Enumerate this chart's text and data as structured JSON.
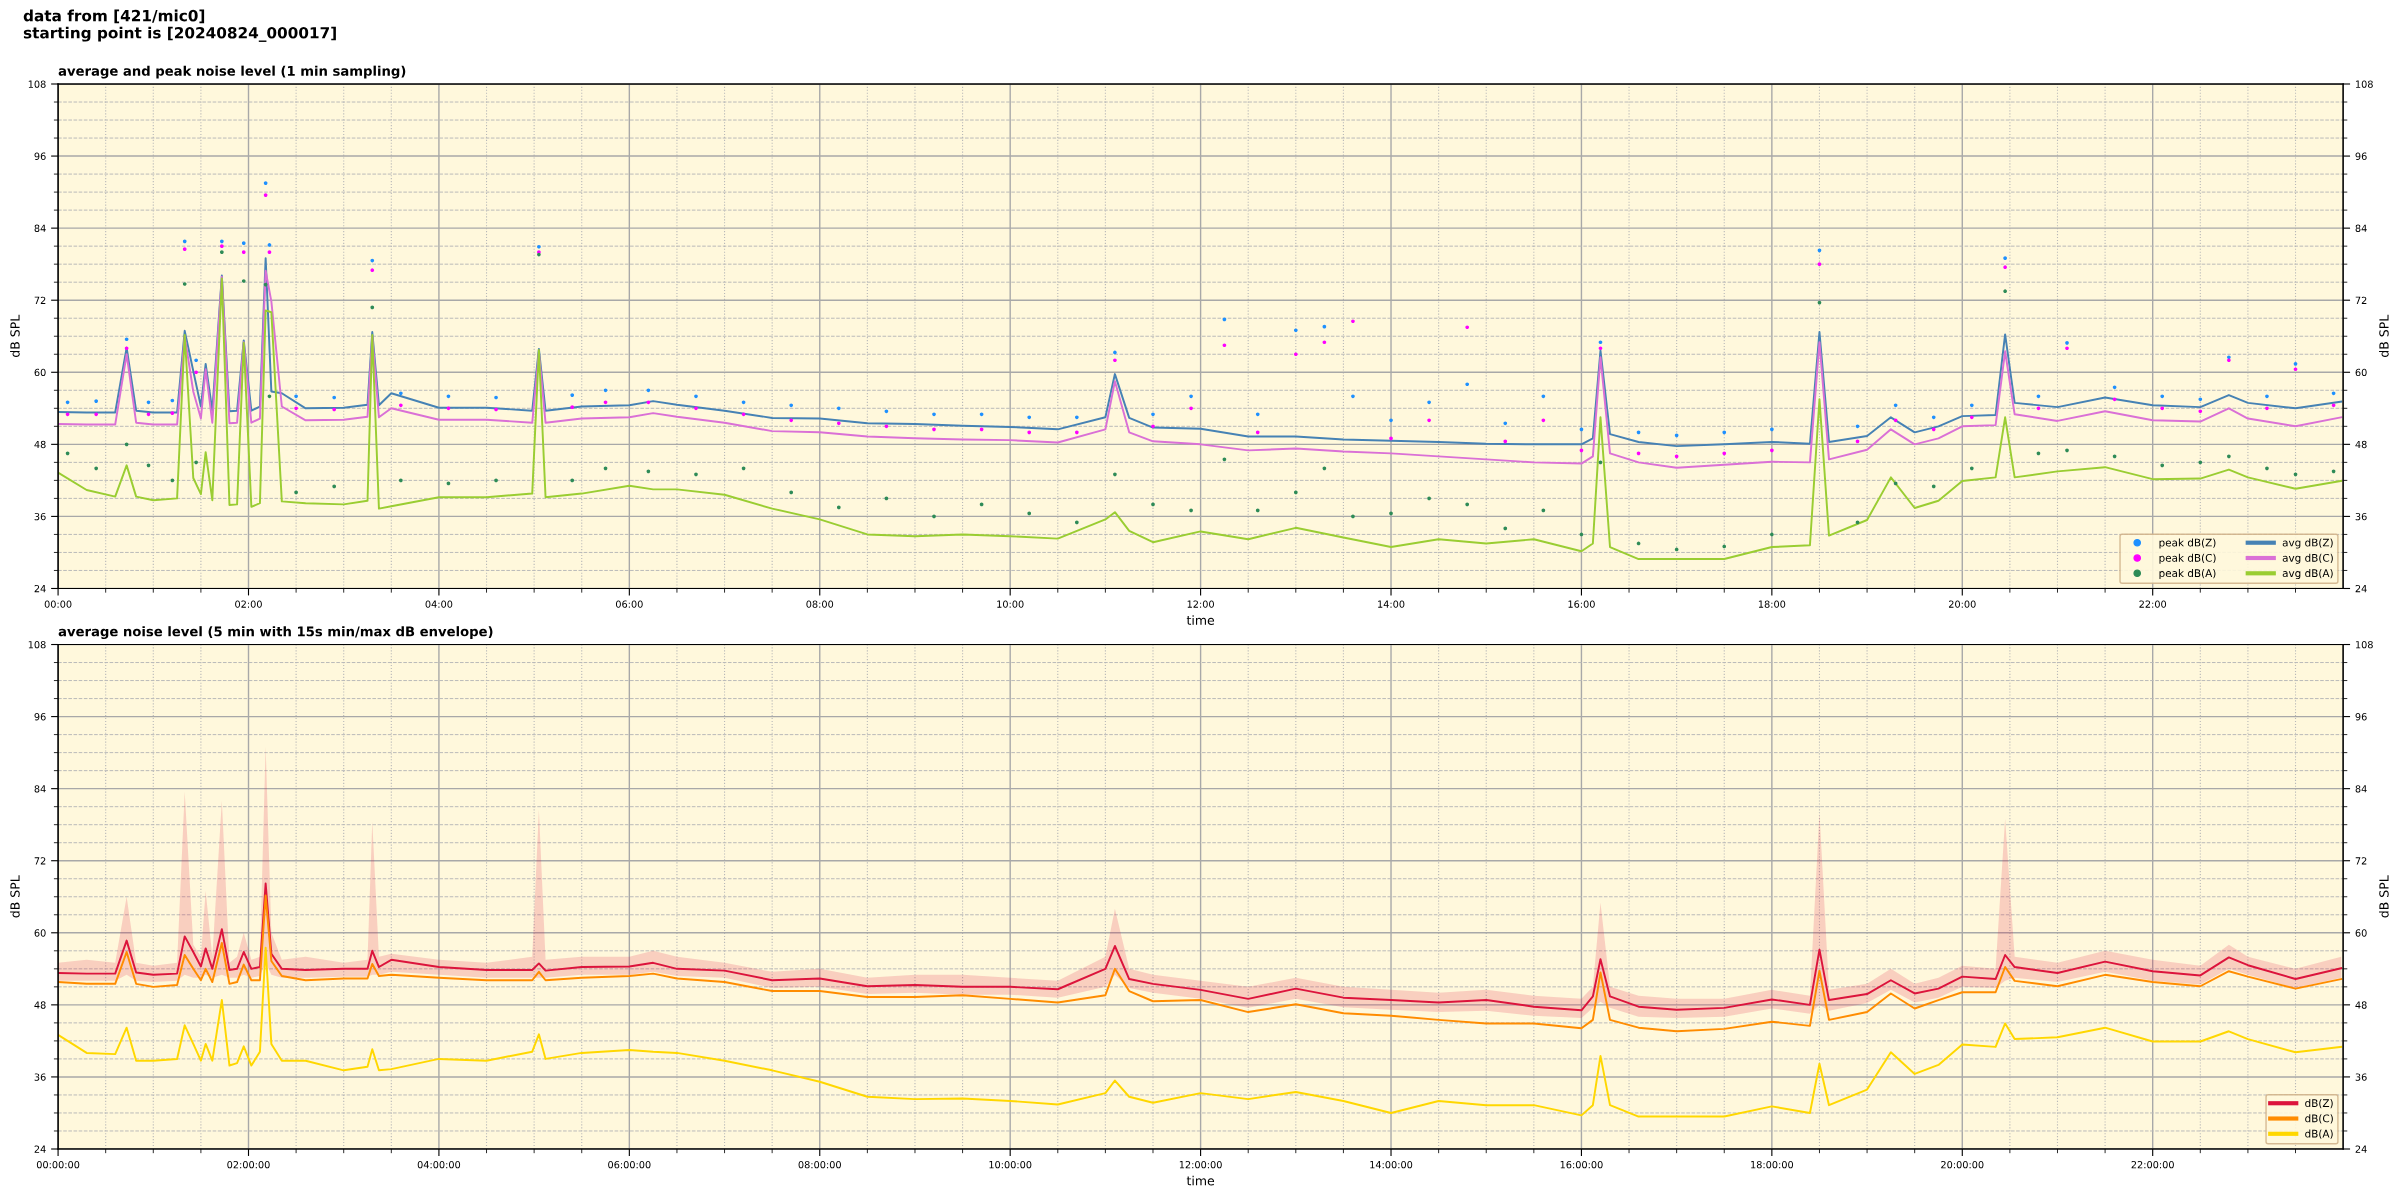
{
  "chart_data": [
    {
      "type": "line",
      "title": "average and peak noise level (1 min sampling)",
      "xlabel": "time",
      "ylabel": "dB SPL",
      "y2label": "dB SPL",
      "annotations": [
        "data from [421/mic0]\nstarting point is [20240824_000017]"
      ],
      "xlim": [
        0,
        24
      ],
      "xticks": [
        {
          "value": 0,
          "label": "00:00"
        },
        {
          "value": 0.5,
          "label": null
        },
        {
          "value": 1,
          "label": null
        },
        {
          "value": 1.5,
          "label": null
        },
        {
          "value": 2,
          "label": "02:00"
        },
        {
          "value": 2.5,
          "label": null
        },
        {
          "value": 3,
          "label": null
        },
        {
          "value": 3.5,
          "label": null
        },
        {
          "value": 4,
          "label": "04:00"
        },
        {
          "value": 4.5,
          "label": null
        },
        {
          "value": 5,
          "label": null
        },
        {
          "value": 5.5,
          "label": null
        },
        {
          "value": 6,
          "label": "06:00"
        },
        {
          "value": 6.5,
          "label": null
        },
        {
          "value": 7,
          "label": null
        },
        {
          "value": 7.5,
          "label": null
        },
        {
          "value": 8,
          "label": "08:00"
        },
        {
          "value": 8.5,
          "label": null
        },
        {
          "value": 9,
          "label": null
        },
        {
          "value": 9.5,
          "label": null
        },
        {
          "value": 10,
          "label": "10:00"
        },
        {
          "value": 10.5,
          "label": null
        },
        {
          "value": 11,
          "label": null
        },
        {
          "value": 11.5,
          "label": null
        },
        {
          "value": 12,
          "label": "12:00"
        },
        {
          "value": 12.5,
          "label": null
        },
        {
          "value": 13,
          "label": null
        },
        {
          "value": 13.5,
          "label": null
        },
        {
          "value": 14,
          "label": "14:00"
        },
        {
          "value": 14.5,
          "label": null
        },
        {
          "value": 15,
          "label": null
        },
        {
          "value": 15.5,
          "label": null
        },
        {
          "value": 16,
          "label": "16:00"
        },
        {
          "value": 16.5,
          "label": null
        },
        {
          "value": 17,
          "label": null
        },
        {
          "value": 17.5,
          "label": null
        },
        {
          "value": 18,
          "label": "18:00"
        },
        {
          "value": 18.5,
          "label": null
        },
        {
          "value": 19,
          "label": null
        },
        {
          "value": 19.5,
          "label": null
        },
        {
          "value": 20,
          "label": "20:00"
        },
        {
          "value": 20.5,
          "label": null
        },
        {
          "value": 21,
          "label": null
        },
        {
          "value": 21.5,
          "label": null
        },
        {
          "value": 22,
          "label": "22:00"
        },
        {
          "value": 22.5,
          "label": null
        },
        {
          "value": 23,
          "label": null
        },
        {
          "value": 23.5,
          "label": null
        }
      ],
      "ylim": [
        24,
        108
      ],
      "yticks": [
        24,
        {
          "value": 27,
          "label": null
        },
        {
          "value": 30,
          "label": null
        },
        {
          "value": 33,
          "label": null
        },
        36,
        {
          "value": 39,
          "label": null
        },
        {
          "value": 42,
          "label": null
        },
        {
          "value": 45,
          "label": null
        },
        48,
        {
          "value": 51,
          "label": null
        },
        {
          "value": 54,
          "label": null
        },
        {
          "value": 57,
          "label": null
        },
        60,
        {
          "value": 63,
          "label": null
        },
        {
          "value": 66,
          "label": null
        },
        {
          "value": 69,
          "label": null
        },
        72,
        {
          "value": 75,
          "label": null
        },
        {
          "value": 78,
          "label": null
        },
        {
          "value": 81,
          "label": null
        },
        84,
        {
          "value": 87,
          "label": null
        },
        {
          "value": 90,
          "label": null
        },
        {
          "value": 93,
          "label": null
        },
        96,
        {
          "value": 99,
          "label": null
        },
        {
          "value": 102,
          "label": null
        },
        {
          "value": 105,
          "label": null
        },
        108
      ],
      "y2lim": [
        24,
        108
      ],
      "y2ticks": [
        24,
        {
          "value": 27,
          "label": null
        },
        {
          "value": 30,
          "label": null
        },
        {
          "value": 33,
          "label": null
        },
        36,
        {
          "value": 39,
          "label": null
        },
        {
          "value": 42,
          "label": null
        },
        {
          "value": 45,
          "label": null
        },
        48,
        {
          "value": 51,
          "label": null
        },
        {
          "value": 54,
          "label": null
        },
        {
          "value": 57,
          "label": null
        },
        60,
        {
          "value": 63,
          "label": null
        },
        {
          "value": 66,
          "label": null
        },
        {
          "value": 69,
          "label": null
        },
        72,
        {
          "value": 75,
          "label": null
        },
        {
          "value": 78,
          "label": null
        },
        {
          "value": 81,
          "label": null
        },
        84,
        {
          "value": 87,
          "label": null
        },
        {
          "value": 90,
          "label": null
        },
        {
          "value": 93,
          "label": null
        },
        96,
        {
          "value": 99,
          "label": null
        },
        {
          "value": 102,
          "label": null
        },
        {
          "value": 105,
          "label": null
        },
        108
      ],
      "grid": true,
      "legend": "bottom right",
      "x": [
        0,
        0.3,
        0.6,
        0.72,
        0.82,
        1.0,
        1.25,
        1.33,
        1.42,
        1.5,
        1.55,
        1.62,
        1.72,
        1.8,
        1.88,
        1.95,
        2.03,
        2.12,
        2.18,
        2.24,
        2.35,
        2.6,
        3.0,
        3.25,
        3.3,
        3.37,
        3.5,
        4.0,
        4.5,
        4.98,
        5.05,
        5.12,
        5.5,
        6.0,
        6.25,
        6.5,
        7.0,
        7.5,
        8.0,
        8.5,
        9.0,
        9.5,
        10.0,
        10.5,
        11.0,
        11.1,
        11.25,
        11.5,
        12.0,
        12.5,
        13.0,
        13.5,
        14.0,
        14.5,
        15.0,
        15.5,
        16.0,
        16.12,
        16.2,
        16.3,
        16.6,
        17.0,
        17.5,
        18.0,
        18.4,
        18.5,
        18.6,
        19.0,
        19.25,
        19.5,
        19.75,
        20.0,
        20.35,
        20.45,
        20.55,
        21.0,
        21.5,
        22.0,
        22.5,
        22.8,
        23.0,
        23.5,
        23.98
      ],
      "series": [
        {
          "name": "peak dB(Z)",
          "type": "scatter",
          "marker": "circle",
          "color": "#1e90ff",
          "x": [
            0.1,
            0.4,
            0.72,
            0.95,
            1.2,
            1.33,
            1.45,
            1.72,
            1.95,
            2.18,
            2.22,
            2.5,
            2.9,
            3.3,
            3.6,
            4.1,
            4.6,
            5.05,
            5.4,
            5.75,
            6.2,
            6.7,
            7.2,
            7.7,
            8.2,
            8.7,
            9.2,
            9.7,
            10.2,
            10.7,
            11.1,
            11.5,
            11.9,
            12.25,
            12.6,
            13.0,
            13.3,
            13.6,
            14.0,
            14.4,
            14.8,
            15.2,
            15.6,
            16.0,
            16.2,
            16.6,
            17.0,
            17.5,
            18.0,
            18.5,
            18.9,
            19.3,
            19.7,
            20.1,
            20.45,
            20.8,
            21.1,
            21.6,
            22.1,
            22.5,
            22.8,
            23.2,
            23.5,
            23.9
          ],
          "values": [
            55.0,
            55.2,
            65.5,
            55.0,
            55.3,
            81.8,
            62.0,
            81.8,
            81.5,
            91.5,
            81.2,
            56.0,
            55.8,
            78.6,
            56.5,
            56.0,
            55.8,
            80.9,
            56.2,
            57.0,
            57.0,
            56.0,
            55.0,
            54.5,
            54.0,
            53.5,
            53.0,
            53.0,
            52.5,
            52.5,
            63.3,
            53.0,
            56.0,
            68.8,
            53.0,
            67.0,
            67.6,
            56.0,
            52.0,
            55.0,
            58.0,
            51.5,
            56.0,
            50.5,
            65.0,
            50.0,
            49.5,
            50.0,
            50.5,
            80.3,
            51.0,
            54.5,
            52.5,
            54.5,
            79.0,
            56.0,
            64.9,
            57.5,
            56.0,
            55.5,
            62.5,
            56.0,
            61.4,
            56.5
          ]
        },
        {
          "name": "peak dB(C)",
          "type": "scatter",
          "marker": "circle",
          "color": "#ff00ff",
          "x": [
            0.1,
            0.4,
            0.72,
            0.95,
            1.2,
            1.33,
            1.45,
            1.72,
            1.95,
            2.18,
            2.22,
            2.5,
            2.9,
            3.3,
            3.6,
            4.1,
            4.6,
            5.05,
            5.4,
            5.75,
            6.2,
            6.7,
            7.2,
            7.7,
            8.2,
            8.7,
            9.2,
            9.7,
            10.2,
            10.7,
            11.1,
            11.5,
            11.9,
            12.25,
            12.6,
            13.0,
            13.3,
            13.6,
            14.0,
            14.4,
            14.8,
            15.2,
            15.6,
            16.0,
            16.2,
            16.6,
            17.0,
            17.5,
            18.0,
            18.5,
            18.9,
            19.3,
            19.7,
            20.1,
            20.45,
            20.8,
            21.1,
            21.6,
            22.1,
            22.5,
            22.8,
            23.2,
            23.5,
            23.9
          ],
          "values": [
            53.0,
            53.0,
            64.0,
            53.0,
            53.2,
            80.5,
            60.0,
            81.0,
            80.0,
            89.5,
            80.0,
            54.0,
            53.8,
            77.0,
            54.5,
            54.0,
            53.8,
            80.0,
            54.2,
            55.0,
            55.0,
            54.0,
            53.0,
            52.0,
            51.5,
            51.0,
            50.5,
            50.5,
            50.0,
            50.0,
            62.0,
            51.0,
            54.0,
            64.5,
            50.0,
            63.0,
            65.0,
            68.5,
            49.0,
            52.0,
            67.5,
            48.5,
            52.0,
            47.0,
            64.0,
            46.5,
            46.0,
            46.5,
            47.0,
            78.0,
            48.5,
            52.0,
            50.5,
            52.5,
            77.5,
            54.0,
            64.0,
            55.5,
            54.0,
            53.5,
            62.0,
            54.0,
            60.5,
            54.5
          ]
        },
        {
          "name": "peak dB(A)",
          "type": "scatter",
          "marker": "circle",
          "color": "#2e8b57",
          "x": [
            0.1,
            0.4,
            0.72,
            0.95,
            1.2,
            1.33,
            1.45,
            1.72,
            1.95,
            2.18,
            2.22,
            2.5,
            2.9,
            3.3,
            3.6,
            4.1,
            4.6,
            5.05,
            5.4,
            5.75,
            6.2,
            6.7,
            7.2,
            7.7,
            8.2,
            8.7,
            9.2,
            9.7,
            10.2,
            10.7,
            11.1,
            11.5,
            11.9,
            12.25,
            12.6,
            13.0,
            13.3,
            13.6,
            14.0,
            14.4,
            14.8,
            15.2,
            15.6,
            16.0,
            16.2,
            16.6,
            17.0,
            17.5,
            18.0,
            18.5,
            18.9,
            19.3,
            19.7,
            20.1,
            20.45,
            20.8,
            21.1,
            21.6,
            22.1,
            22.5,
            22.8,
            23.2,
            23.5,
            23.9
          ],
          "values": [
            46.5,
            44.0,
            48.0,
            44.5,
            42.0,
            74.7,
            45.0,
            80.0,
            75.2,
            74.6,
            56.0,
            40.0,
            41.0,
            70.8,
            42.0,
            41.5,
            42.0,
            79.6,
            42.0,
            44.0,
            43.5,
            43.0,
            44.0,
            40.0,
            37.5,
            39.0,
            36.0,
            38.0,
            36.5,
            35.0,
            43.0,
            38.0,
            37.0,
            45.5,
            37.0,
            40.0,
            44.0,
            36.0,
            36.5,
            39.0,
            38.0,
            34.0,
            37.0,
            33.0,
            45.0,
            31.5,
            30.5,
            31.0,
            33.0,
            71.6,
            35.0,
            41.5,
            41.0,
            44.0,
            73.5,
            46.5,
            47.0,
            46.0,
            44.5,
            45.0,
            46.0,
            44.0,
            43.0,
            43.5
          ]
        },
        {
          "name": "avg dB(Z)",
          "color": "#4682b4",
          "values": [
            53.4,
            53.3,
            53.3,
            64.1,
            53.6,
            53.3,
            53.3,
            66.9,
            60.2,
            54.3,
            61.4,
            53.6,
            76.1,
            53.5,
            53.6,
            65.3,
            53.6,
            54.3,
            79.0,
            56.8,
            56.5,
            54.0,
            54.1,
            54.6,
            66.7,
            54.5,
            56.5,
            54.1,
            54.1,
            53.6,
            63.9,
            53.6,
            54.3,
            54.5,
            55.2,
            54.6,
            53.6,
            52.4,
            52.3,
            51.5,
            51.4,
            51.1,
            50.9,
            50.5,
            52.5,
            59.7,
            52.4,
            50.8,
            50.6,
            49.3,
            49.3,
            48.8,
            48.6,
            48.4,
            48.1,
            48.0,
            48.0,
            49.0,
            63.6,
            49.7,
            48.4,
            47.7,
            48.0,
            48.4,
            48.1,
            66.7,
            48.4,
            49.4,
            52.5,
            50.0,
            51.0,
            52.7,
            52.9,
            66.3,
            54.9,
            54.2,
            55.8,
            54.5,
            54.2,
            56.2,
            54.9,
            54.0,
            55.1
          ]
        },
        {
          "name": "avg dB(C)",
          "color": "#da70d6",
          "values": [
            51.4,
            51.3,
            51.3,
            63.0,
            51.6,
            51.3,
            51.3,
            66.0,
            56.8,
            52.3,
            60.5,
            51.6,
            75.9,
            51.5,
            51.6,
            65.0,
            51.6,
            52.3,
            76.9,
            71.8,
            54.3,
            52.0,
            52.1,
            52.6,
            66.0,
            52.5,
            54.0,
            52.1,
            52.1,
            51.6,
            63.3,
            51.6,
            52.3,
            52.5,
            53.2,
            52.6,
            51.6,
            50.2,
            50.0,
            49.3,
            49.0,
            48.8,
            48.7,
            48.3,
            50.5,
            58.5,
            50.0,
            48.5,
            48.0,
            47.0,
            47.3,
            46.8,
            46.5,
            46.0,
            45.5,
            45.0,
            44.8,
            46.0,
            62.5,
            46.5,
            45.0,
            44.1,
            44.6,
            45.1,
            45.0,
            65.0,
            45.5,
            47.1,
            50.5,
            48.0,
            49.0,
            51.0,
            51.2,
            63.5,
            53.0,
            51.9,
            53.5,
            52.0,
            51.8,
            54.0,
            52.3,
            51.0,
            52.5
          ]
        },
        {
          "name": "avg dB(A)",
          "color": "#9acd32",
          "values": [
            43.3,
            40.4,
            39.3,
            44.5,
            39.3,
            38.7,
            39.0,
            66.2,
            42.4,
            39.7,
            46.7,
            38.7,
            75.6,
            37.9,
            38.0,
            64.9,
            37.6,
            38.2,
            70.3,
            70.0,
            38.5,
            38.2,
            38.0,
            38.6,
            66.2,
            37.3,
            37.7,
            39.2,
            39.2,
            39.8,
            63.7,
            39.2,
            39.8,
            41.1,
            40.5,
            40.5,
            39.6,
            37.3,
            35.5,
            33.0,
            32.7,
            33.0,
            32.7,
            32.3,
            35.5,
            36.7,
            33.6,
            31.7,
            33.5,
            32.2,
            34.1,
            32.5,
            30.9,
            32.2,
            31.5,
            32.2,
            30.2,
            31.5,
            52.5,
            30.9,
            28.9,
            28.9,
            28.9,
            30.9,
            31.2,
            55.5,
            32.8,
            35.4,
            42.5,
            37.4,
            38.6,
            41.9,
            42.5,
            52.5,
            42.5,
            43.5,
            44.2,
            42.2,
            42.3,
            43.8,
            42.5,
            40.6,
            41.9
          ]
        }
      ]
    },
    {
      "type": "line",
      "title": "average noise level (5 min with 15s min/max dB envelope)",
      "xlabel": "time",
      "ylabel": "dB SPL",
      "y2label": "dB SPL",
      "xlim": [
        0,
        24
      ],
      "xticks": [
        {
          "value": 0,
          "label": "00:00:00"
        },
        {
          "value": 0.5,
          "label": null
        },
        {
          "value": 1,
          "label": null
        },
        {
          "value": 1.5,
          "label": null
        },
        {
          "value": 2,
          "label": "02:00:00"
        },
        {
          "value": 2.5,
          "label": null
        },
        {
          "value": 3,
          "label": null
        },
        {
          "value": 3.5,
          "label": null
        },
        {
          "value": 4,
          "label": "04:00:00"
        },
        {
          "value": 4.5,
          "label": null
        },
        {
          "value": 5,
          "label": null
        },
        {
          "value": 5.5,
          "label": null
        },
        {
          "value": 6,
          "label": "06:00:00"
        },
        {
          "value": 6.5,
          "label": null
        },
        {
          "value": 7,
          "label": null
        },
        {
          "value": 7.5,
          "label": null
        },
        {
          "value": 8,
          "label": "08:00:00"
        },
        {
          "value": 8.5,
          "label": null
        },
        {
          "value": 9,
          "label": null
        },
        {
          "value": 9.5,
          "label": null
        },
        {
          "value": 10,
          "label": "10:00:00"
        },
        {
          "value": 10.5,
          "label": null
        },
        {
          "value": 11,
          "label": null
        },
        {
          "value": 11.5,
          "label": null
        },
        {
          "value": 12,
          "label": "12:00:00"
        },
        {
          "value": 12.5,
          "label": null
        },
        {
          "value": 13,
          "label": null
        },
        {
          "value": 13.5,
          "label": null
        },
        {
          "value": 14,
          "label": "14:00:00"
        },
        {
          "value": 14.5,
          "label": null
        },
        {
          "value": 15,
          "label": null
        },
        {
          "value": 15.5,
          "label": null
        },
        {
          "value": 16,
          "label": "16:00:00"
        },
        {
          "value": 16.5,
          "label": null
        },
        {
          "value": 17,
          "label": null
        },
        {
          "value": 17.5,
          "label": null
        },
        {
          "value": 18,
          "label": "18:00:00"
        },
        {
          "value": 18.5,
          "label": null
        },
        {
          "value": 19,
          "label": null
        },
        {
          "value": 19.5,
          "label": null
        },
        {
          "value": 20,
          "label": "20:00:00"
        },
        {
          "value": 20.5,
          "label": null
        },
        {
          "value": 21,
          "label": null
        },
        {
          "value": 21.5,
          "label": null
        },
        {
          "value": 22,
          "label": "22:00:00"
        },
        {
          "value": 22.5,
          "label": null
        },
        {
          "value": 23,
          "label": null
        },
        {
          "value": 23.5,
          "label": null
        }
      ],
      "ylim": [
        24,
        108
      ],
      "yticks": [
        24,
        {
          "value": 27,
          "label": null
        },
        {
          "value": 30,
          "label": null
        },
        {
          "value": 33,
          "label": null
        },
        36,
        {
          "value": 39,
          "label": null
        },
        {
          "value": 42,
          "label": null
        },
        {
          "value": 45,
          "label": null
        },
        48,
        {
          "value": 51,
          "label": null
        },
        {
          "value": 54,
          "label": null
        },
        {
          "value": 57,
          "label": null
        },
        60,
        {
          "value": 63,
          "label": null
        },
        {
          "value": 66,
          "label": null
        },
        {
          "value": 69,
          "label": null
        },
        72,
        {
          "value": 75,
          "label": null
        },
        {
          "value": 78,
          "label": null
        },
        {
          "value": 81,
          "label": null
        },
        84,
        {
          "value": 87,
          "label": null
        },
        {
          "value": 90,
          "label": null
        },
        {
          "value": 93,
          "label": null
        },
        96,
        {
          "value": 99,
          "label": null
        },
        {
          "value": 102,
          "label": null
        },
        {
          "value": 105,
          "label": null
        },
        108
      ],
      "y2lim": [
        24,
        108
      ],
      "y2ticks": [
        24,
        {
          "value": 27,
          "label": null
        },
        {
          "value": 30,
          "label": null
        },
        {
          "value": 33,
          "label": null
        },
        36,
        {
          "value": 39,
          "label": null
        },
        {
          "value": 42,
          "label": null
        },
        {
          "value": 45,
          "label": null
        },
        48,
        {
          "value": 51,
          "label": null
        },
        {
          "value": 54,
          "label": null
        },
        {
          "value": 57,
          "label": null
        },
        60,
        {
          "value": 63,
          "label": null
        },
        {
          "value": 66,
          "label": null
        },
        {
          "value": 69,
          "label": null
        },
        72,
        {
          "value": 75,
          "label": null
        },
        {
          "value": 78,
          "label": null
        },
        {
          "value": 81,
          "label": null
        },
        84,
        {
          "value": 87,
          "label": null
        },
        {
          "value": 90,
          "label": null
        },
        {
          "value": 93,
          "label": null
        },
        96,
        {
          "value": 99,
          "label": null
        },
        {
          "value": 102,
          "label": null
        },
        {
          "value": 105,
          "label": null
        },
        108
      ],
      "grid": true,
      "legend": "bottom right",
      "x": [
        0,
        0.3,
        0.6,
        0.72,
        0.82,
        1.0,
        1.25,
        1.33,
        1.42,
        1.5,
        1.55,
        1.62,
        1.72,
        1.8,
        1.88,
        1.95,
        2.03,
        2.12,
        2.18,
        2.24,
        2.35,
        2.6,
        3.0,
        3.25,
        3.3,
        3.37,
        3.5,
        4.0,
        4.5,
        4.98,
        5.05,
        5.12,
        5.5,
        6.0,
        6.25,
        6.5,
        7.0,
        7.5,
        8.0,
        8.5,
        9.0,
        9.5,
        10.0,
        10.5,
        11.0,
        11.1,
        11.25,
        11.5,
        12.0,
        12.5,
        13.0,
        13.5,
        14.0,
        14.5,
        15.0,
        15.5,
        16.0,
        16.12,
        16.2,
        16.3,
        16.6,
        17.0,
        17.5,
        18.0,
        18.4,
        18.5,
        18.6,
        19.0,
        19.25,
        19.5,
        19.75,
        20.0,
        20.35,
        20.45,
        20.55,
        21.0,
        21.5,
        22.0,
        22.5,
        22.8,
        23.0,
        23.5,
        23.98
      ],
      "series": [
        {
          "name": "dB(Z)",
          "color": "#dc143c",
          "values": [
            53.3,
            53.2,
            53.2,
            58.7,
            53.4,
            53.0,
            53.2,
            59.4,
            56.8,
            54.4,
            57.4,
            54.0,
            60.6,
            53.8,
            54.0,
            56.8,
            54.0,
            54.3,
            68.2,
            56.5,
            54.0,
            53.8,
            54.0,
            54.0,
            57.0,
            54.3,
            55.5,
            54.3,
            53.8,
            53.8,
            54.9,
            53.7,
            54.3,
            54.4,
            55.0,
            54.0,
            53.7,
            52.1,
            52.4,
            51.1,
            51.3,
            51.0,
            51.0,
            50.6,
            54.0,
            57.8,
            52.3,
            51.5,
            50.5,
            49.0,
            50.7,
            49.2,
            48.8,
            48.4,
            48.8,
            47.7,
            47.1,
            49.4,
            55.6,
            49.4,
            47.7,
            47.2,
            47.5,
            48.9,
            48.0,
            57.2,
            48.8,
            49.8,
            52.1,
            49.9,
            50.7,
            52.7,
            52.3,
            56.3,
            54.3,
            53.3,
            55.2,
            53.6,
            52.9,
            55.9,
            54.6,
            52.3,
            54.1
          ],
          "lower": [
            52,
            52,
            52,
            53,
            52,
            51.8,
            52,
            53,
            52.5,
            52.5,
            53,
            52.5,
            53,
            52.5,
            52.5,
            53,
            52.5,
            52.8,
            55,
            53,
            52.5,
            52.5,
            52.7,
            52.7,
            53,
            53,
            53.5,
            53,
            52.5,
            52.5,
            52.5,
            52.5,
            53,
            53,
            53.5,
            52.8,
            52.5,
            50.8,
            51,
            49.8,
            50,
            49.7,
            49.7,
            49.2,
            51,
            53,
            50.8,
            50,
            49,
            47.5,
            49,
            47.6,
            47.2,
            46.8,
            47,
            46.2,
            45.8,
            47.5,
            48.5,
            47.5,
            46,
            45.8,
            46,
            47.4,
            46.5,
            48,
            47,
            48.3,
            50.5,
            48.4,
            49.2,
            51,
            50.8,
            52,
            52.5,
            51.8,
            53.5,
            52,
            51.4,
            54,
            53,
            50.8,
            52.5
          ],
          "upper": [
            55,
            55.5,
            55,
            66,
            55,
            54.5,
            55,
            83.5,
            58,
            56,
            67,
            56,
            82,
            55,
            56,
            60,
            55.5,
            56,
            91,
            60,
            55.5,
            56,
            55,
            55.5,
            78.5,
            56,
            56.5,
            55.5,
            55,
            56,
            80.5,
            55.5,
            56,
            56,
            57,
            56,
            55,
            53.5,
            54,
            52.5,
            53,
            53,
            52.5,
            52,
            56,
            64,
            54,
            53,
            52,
            51,
            52.5,
            51,
            50.5,
            50,
            50.5,
            49.5,
            49,
            51,
            65,
            51,
            49.5,
            49,
            49,
            50.5,
            49.5,
            80,
            50.5,
            51.5,
            54,
            51.5,
            52.5,
            54.5,
            54,
            79,
            56,
            55,
            57,
            55.5,
            54.5,
            58,
            56,
            54,
            56
          ]
        },
        {
          "name": "dB(C)",
          "color": "#ff8c00",
          "values": [
            51.8,
            51.5,
            51.5,
            56.8,
            51.5,
            51.0,
            51.3,
            56.3,
            54.0,
            52.1,
            54.0,
            51.8,
            58.3,
            51.5,
            51.8,
            54.7,
            52.1,
            52.1,
            66.2,
            55.3,
            52.8,
            52.1,
            52.4,
            52.4,
            54.8,
            52.8,
            53.0,
            52.5,
            52.1,
            52.1,
            53.5,
            52.1,
            52.5,
            52.8,
            53.2,
            52.4,
            51.8,
            50.3,
            50.3,
            49.3,
            49.3,
            49.6,
            49.0,
            48.4,
            49.6,
            54.0,
            50.3,
            48.6,
            48.8,
            46.8,
            48.1,
            46.6,
            46.2,
            45.5,
            44.9,
            44.9,
            44.1,
            45.5,
            53.4,
            45.5,
            44.2,
            43.6,
            44.0,
            45.2,
            44.5,
            53.7,
            45.5,
            46.8,
            49.9,
            47.4,
            48.8,
            50.1,
            50.1,
            54.3,
            52.0,
            51.1,
            53.0,
            51.8,
            51.1,
            53.6,
            52.7,
            50.7,
            52.3
          ]
        },
        {
          "name": "dB(A)",
          "color": "#ffd700",
          "values": [
            43.0,
            40.0,
            39.8,
            44.2,
            38.7,
            38.7,
            39.0,
            44.6,
            41.5,
            38.7,
            41.5,
            38.7,
            48.8,
            37.9,
            38.3,
            41.1,
            37.9,
            40.2,
            57.5,
            41.5,
            38.7,
            38.7,
            37.1,
            37.7,
            40.6,
            37.1,
            37.3,
            39.0,
            38.7,
            40.2,
            43.1,
            39.0,
            40.0,
            40.5,
            40.2,
            40.0,
            38.7,
            37.1,
            35.2,
            32.7,
            32.3,
            32.4,
            32.0,
            31.4,
            33.3,
            35.4,
            32.7,
            31.7,
            33.3,
            32.3,
            33.5,
            32.0,
            30.0,
            32.0,
            31.3,
            31.3,
            29.6,
            31.3,
            39.5,
            31.3,
            29.4,
            29.4,
            29.4,
            31.1,
            30.0,
            38.2,
            31.3,
            33.9,
            40.1,
            36.5,
            38.0,
            41.4,
            41.0,
            44.9,
            42.3,
            42.6,
            44.2,
            41.9,
            41.9,
            43.6,
            42.3,
            40.1,
            41.0
          ]
        }
      ]
    }
  ]
}
